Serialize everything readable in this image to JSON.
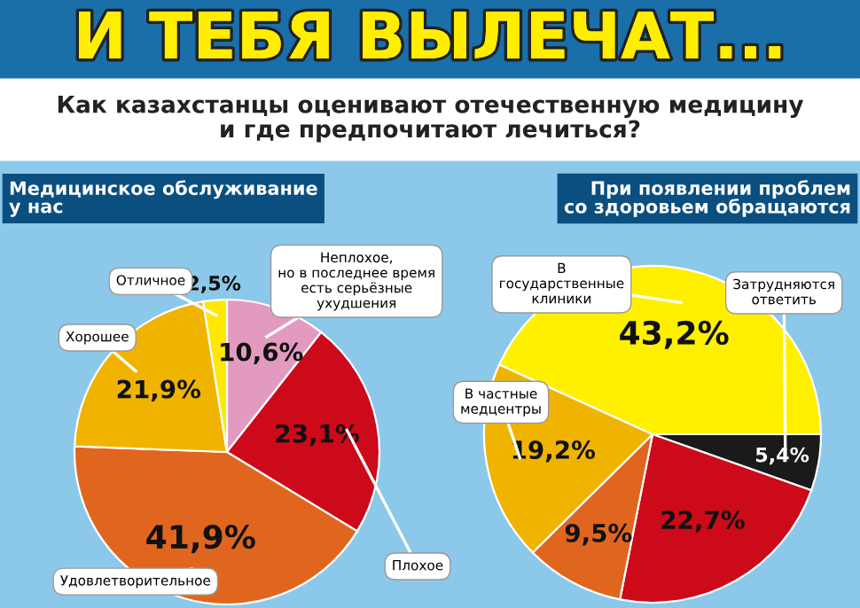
{
  "chart_data": [
    {
      "type": "pie",
      "title": "Медицинское обслуживание\nу нас",
      "annotations": [
        "И ТЕБЯ ВЫЛЕЧАТ...",
        "Как казахстанцы оценивают отечественную медицину\nи где предпочитают лечиться?"
      ],
      "categories": [
        "Неплохое,\nно в последнее время\nесть серьёзные\nухудшения",
        "Плохое",
        "Удовлетворительное",
        "Хорошее",
        "Отличное"
      ],
      "values": [
        10.6,
        23.1,
        41.9,
        21.9,
        2.5
      ],
      "colors": [
        "#e39ac0",
        "#cc0a1a",
        "#e0661f",
        "#f0b400",
        "#ffe800"
      ],
      "value_labels": [
        "10,6%",
        "23,1%",
        "41,9%",
        "21,9%",
        "2,5%"
      ]
    },
    {
      "type": "pie",
      "title": "При появлении проблем\nсо здоровьем обращаются",
      "categories": [
        "Затрудняются\nответить",
        null,
        null,
        "В частные\nмедцентры",
        "В\nгосударственные\nклиники"
      ],
      "values": [
        5.4,
        22.7,
        9.5,
        19.2,
        43.2
      ],
      "colors": [
        "#1a1a1a",
        "#cc0a1a",
        "#e0661f",
        "#f0b400",
        "#fff000"
      ],
      "value_labels": [
        "5,4%",
        "22,7%",
        "9,5%",
        "19,2%",
        "43,2%"
      ]
    }
  ]
}
